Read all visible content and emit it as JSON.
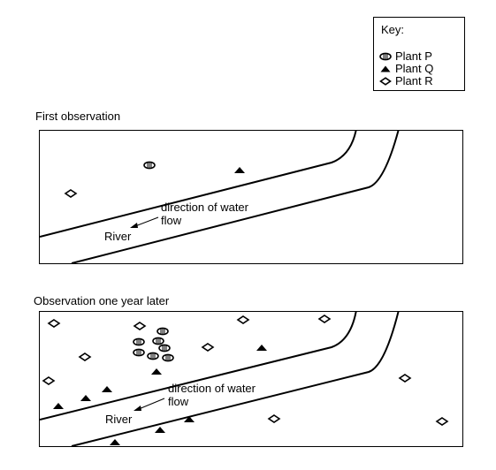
{
  "key": {
    "title": "Key:",
    "items": [
      {
        "symbol": "oval-hatched",
        "label": "Plant P"
      },
      {
        "symbol": "triangle-filled",
        "label": "Plant Q"
      },
      {
        "symbol": "diamond-open",
        "label": "Plant R"
      }
    ]
  },
  "panels": [
    {
      "caption": "First observation",
      "direction_label_1": "direction of water",
      "direction_label_2": "flow",
      "river_label": "River"
    },
    {
      "caption": "Observation one year later",
      "direction_label_1": "direction of water",
      "direction_label_2": "flow",
      "river_label": "River"
    }
  ],
  "colors": {
    "ink": "#000000",
    "background": "#ffffff"
  }
}
